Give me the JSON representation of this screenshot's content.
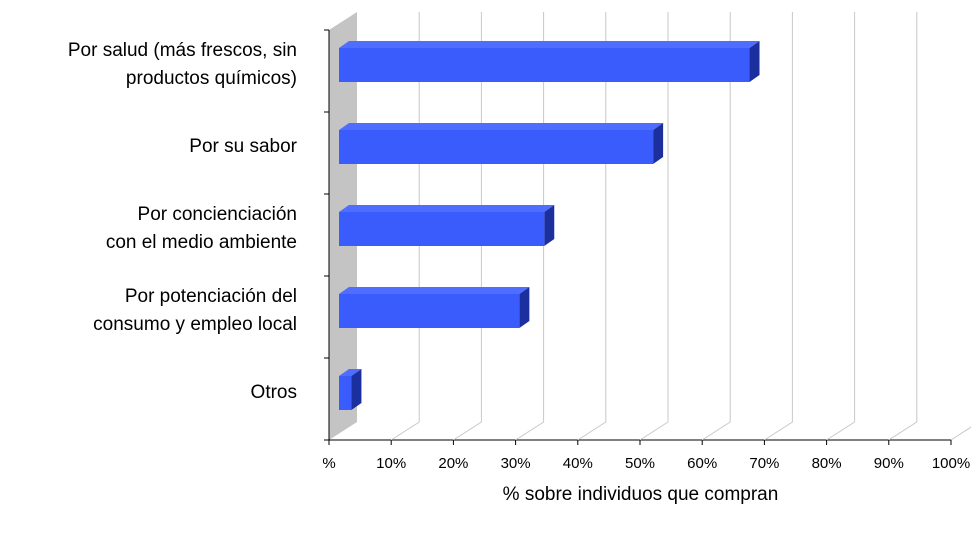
{
  "chart_data": {
    "type": "bar",
    "orientation": "horizontal",
    "x_label": "% sobre individuos que compran",
    "categories": [
      "Por salud (más frescos, sin\nproductos químicos)",
      "Por su sabor",
      "Por concienciación\ncon el medio ambiente",
      "Por potenciación del\nconsumo y empleo local",
      "Otros"
    ],
    "values": [
      66,
      50.5,
      33,
      29,
      2
    ],
    "color": "#3a5cfc",
    "xlim": [
      0,
      100
    ],
    "xticks": [
      {
        "value": 0,
        "label": "%"
      },
      {
        "value": 10,
        "label": "10%"
      },
      {
        "value": 20,
        "label": "20%"
      },
      {
        "value": 30,
        "label": "30%"
      },
      {
        "value": 40,
        "label": "40%"
      },
      {
        "value": 50,
        "label": "50%"
      },
      {
        "value": 60,
        "label": "60%"
      },
      {
        "value": 70,
        "label": "70%"
      },
      {
        "value": 80,
        "label": "80%"
      },
      {
        "value": 90,
        "label": "90%"
      },
      {
        "value": 100,
        "label": "100%"
      }
    ],
    "grid": true
  }
}
